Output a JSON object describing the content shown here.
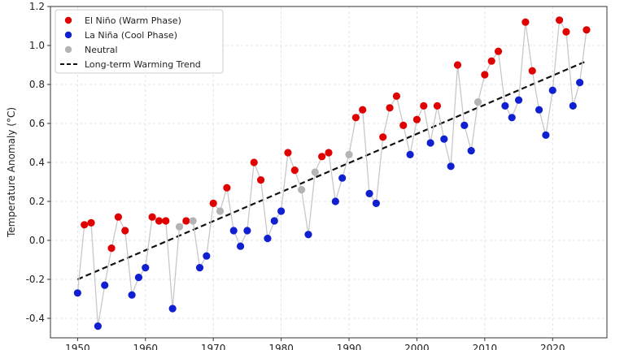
{
  "chart_data": {
    "type": "line",
    "ylabel": "Temperature Anomaly (°C)",
    "xlim": [
      1946,
      2028
    ],
    "ylim": [
      -0.5,
      1.2
    ],
    "x_ticks": [
      1950,
      1960,
      1970,
      1980,
      1990,
      2000,
      2010,
      2020
    ],
    "y_ticks": [
      -0.4,
      -0.2,
      0.0,
      0.2,
      0.4,
      0.6,
      0.8,
      1.0,
      1.2
    ],
    "y_tick_labels": [
      "-0.4",
      "-0.2",
      "0.0",
      "0.2",
      "0.4",
      "0.6",
      "0.8",
      "1.0",
      "1.2"
    ],
    "grid": true,
    "legend_position": "top-left",
    "legend": [
      {
        "label": "El Niño (Warm Phase)",
        "color": "#e00000",
        "marker": "circle"
      },
      {
        "label": "La Niña (Cool Phase)",
        "color": "#1020d0",
        "marker": "circle"
      },
      {
        "label": "Neutral",
        "color": "#b4b4b4",
        "marker": "circle"
      },
      {
        "label": "Long-term Warming Trend",
        "color": "#111111",
        "marker": "dashed-line"
      }
    ],
    "colors": {
      "el_nino": "#e00000",
      "la_nina": "#1020d0",
      "neutral": "#b4b4b4",
      "connector": "#c8c8c8",
      "trend": "#111111"
    },
    "series": [
      {
        "name": "Temperature Anomaly",
        "points": [
          {
            "x": 1950,
            "y": -0.27,
            "phase": "la_nina"
          },
          {
            "x": 1951,
            "y": 0.08,
            "phase": "el_nino"
          },
          {
            "x": 1952,
            "y": 0.09,
            "phase": "el_nino"
          },
          {
            "x": 1953,
            "y": -0.44,
            "phase": "la_nina"
          },
          {
            "x": 1954,
            "y": -0.23,
            "phase": "la_nina"
          },
          {
            "x": 1955,
            "y": -0.04,
            "phase": "el_nino"
          },
          {
            "x": 1956,
            "y": 0.12,
            "phase": "el_nino"
          },
          {
            "x": 1957,
            "y": 0.05,
            "phase": "el_nino"
          },
          {
            "x": 1958,
            "y": -0.28,
            "phase": "la_nina"
          },
          {
            "x": 1959,
            "y": -0.19,
            "phase": "la_nina"
          },
          {
            "x": 1960,
            "y": -0.14,
            "phase": "la_nina"
          },
          {
            "x": 1961,
            "y": 0.12,
            "phase": "el_nino"
          },
          {
            "x": 1962,
            "y": 0.1,
            "phase": "el_nino"
          },
          {
            "x": 1963,
            "y": 0.1,
            "phase": "el_nino"
          },
          {
            "x": 1964,
            "y": -0.35,
            "phase": "la_nina"
          },
          {
            "x": 1965,
            "y": 0.07,
            "phase": "neutral"
          },
          {
            "x": 1966,
            "y": 0.1,
            "phase": "el_nino"
          },
          {
            "x": 1967,
            "y": 0.1,
            "phase": "neutral"
          },
          {
            "x": 1968,
            "y": -0.14,
            "phase": "la_nina"
          },
          {
            "x": 1969,
            "y": -0.08,
            "phase": "la_nina"
          },
          {
            "x": 1970,
            "y": 0.19,
            "phase": "el_nino"
          },
          {
            "x": 1971,
            "y": 0.15,
            "phase": "neutral"
          },
          {
            "x": 1972,
            "y": 0.27,
            "phase": "el_nino"
          },
          {
            "x": 1973,
            "y": 0.05,
            "phase": "la_nina"
          },
          {
            "x": 1974,
            "y": -0.03,
            "phase": "la_nina"
          },
          {
            "x": 1975,
            "y": 0.05,
            "phase": "la_nina"
          },
          {
            "x": 1976,
            "y": 0.4,
            "phase": "el_nino"
          },
          {
            "x": 1977,
            "y": 0.31,
            "phase": "el_nino"
          },
          {
            "x": 1978,
            "y": 0.01,
            "phase": "la_nina"
          },
          {
            "x": 1979,
            "y": 0.1,
            "phase": "la_nina"
          },
          {
            "x": 1980,
            "y": 0.15,
            "phase": "la_nina"
          },
          {
            "x": 1981,
            "y": 0.45,
            "phase": "el_nino"
          },
          {
            "x": 1982,
            "y": 0.36,
            "phase": "el_nino"
          },
          {
            "x": 1983,
            "y": 0.26,
            "phase": "neutral"
          },
          {
            "x": 1984,
            "y": 0.03,
            "phase": "la_nina"
          },
          {
            "x": 1985,
            "y": 0.35,
            "phase": "neutral"
          },
          {
            "x": 1986,
            "y": 0.43,
            "phase": "el_nino"
          },
          {
            "x": 1987,
            "y": 0.45,
            "phase": "el_nino"
          },
          {
            "x": 1988,
            "y": 0.2,
            "phase": "la_nina"
          },
          {
            "x": 1989,
            "y": 0.32,
            "phase": "la_nina"
          },
          {
            "x": 1990,
            "y": 0.44,
            "phase": "neutral"
          },
          {
            "x": 1991,
            "y": 0.63,
            "phase": "el_nino"
          },
          {
            "x": 1992,
            "y": 0.67,
            "phase": "el_nino"
          },
          {
            "x": 1993,
            "y": 0.24,
            "phase": "la_nina"
          },
          {
            "x": 1994,
            "y": 0.19,
            "phase": "la_nina"
          },
          {
            "x": 1995,
            "y": 0.53,
            "phase": "el_nino"
          },
          {
            "x": 1996,
            "y": 0.68,
            "phase": "el_nino"
          },
          {
            "x": 1997,
            "y": 0.74,
            "phase": "el_nino"
          },
          {
            "x": 1998,
            "y": 0.59,
            "phase": "el_nino"
          },
          {
            "x": 1999,
            "y": 0.44,
            "phase": "la_nina"
          },
          {
            "x": 2000,
            "y": 0.62,
            "phase": "el_nino"
          },
          {
            "x": 2001,
            "y": 0.69,
            "phase": "el_nino"
          },
          {
            "x": 2002,
            "y": 0.5,
            "phase": "la_nina"
          },
          {
            "x": 2003,
            "y": 0.69,
            "phase": "el_nino"
          },
          {
            "x": 2004,
            "y": 0.52,
            "phase": "la_nina"
          },
          {
            "x": 2005,
            "y": 0.38,
            "phase": "la_nina"
          },
          {
            "x": 2006,
            "y": 0.9,
            "phase": "el_nino"
          },
          {
            "x": 2007,
            "y": 0.59,
            "phase": "la_nina"
          },
          {
            "x": 2008,
            "y": 0.46,
            "phase": "la_nina"
          },
          {
            "x": 2009,
            "y": 0.71,
            "phase": "neutral"
          },
          {
            "x": 2010,
            "y": 0.85,
            "phase": "el_nino"
          },
          {
            "x": 2011,
            "y": 0.92,
            "phase": "el_nino"
          },
          {
            "x": 2012,
            "y": 0.97,
            "phase": "el_nino"
          },
          {
            "x": 2013,
            "y": 0.69,
            "phase": "la_nina"
          },
          {
            "x": 2014,
            "y": 0.63,
            "phase": "la_nina"
          },
          {
            "x": 2015,
            "y": 0.72,
            "phase": "la_nina"
          },
          {
            "x": 2016,
            "y": 1.12,
            "phase": "el_nino"
          },
          {
            "x": 2017,
            "y": 0.87,
            "phase": "el_nino"
          },
          {
            "x": 2018,
            "y": 0.67,
            "phase": "la_nina"
          },
          {
            "x": 2019,
            "y": 0.54,
            "phase": "la_nina"
          },
          {
            "x": 2020,
            "y": 0.77,
            "phase": "la_nina"
          },
          {
            "x": 2021,
            "y": 1.13,
            "phase": "el_nino"
          },
          {
            "x": 2022,
            "y": 1.07,
            "phase": "el_nino"
          },
          {
            "x": 2023,
            "y": 0.69,
            "phase": "la_nina"
          },
          {
            "x": 2024,
            "y": 0.81,
            "phase": "la_nina"
          },
          {
            "x": 2025,
            "y": 1.08,
            "phase": "el_nino"
          }
        ]
      },
      {
        "name": "Long-term Warming Trend",
        "style": "dashed",
        "x": [
          1950,
          2025
        ],
        "y": [
          -0.2,
          0.92
        ]
      }
    ]
  }
}
